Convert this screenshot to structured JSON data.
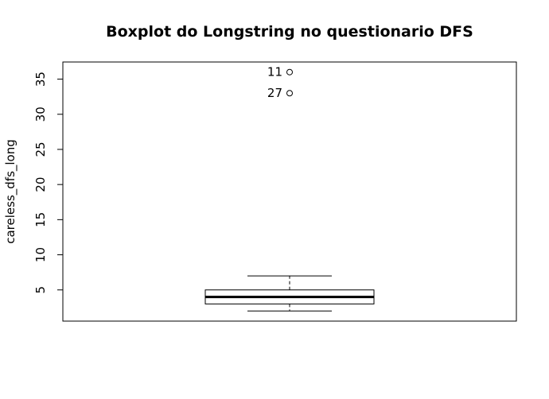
{
  "chart_data": {
    "type": "box",
    "title": "Boxplot do Longstring no questionario DFS",
    "xlabel": "",
    "ylabel": "careless_dfs_long",
    "ylim": [
      0.56,
      37.44
    ],
    "yticks": [
      5,
      10,
      15,
      20,
      25,
      30,
      35
    ],
    "grid": false,
    "box": {
      "whisker_low": 2,
      "q1": 3,
      "median": 4,
      "q3": 5,
      "whisker_high": 7
    },
    "outliers": [
      {
        "label": "11",
        "value": 36
      },
      {
        "label": "27",
        "value": 33
      }
    ]
  }
}
